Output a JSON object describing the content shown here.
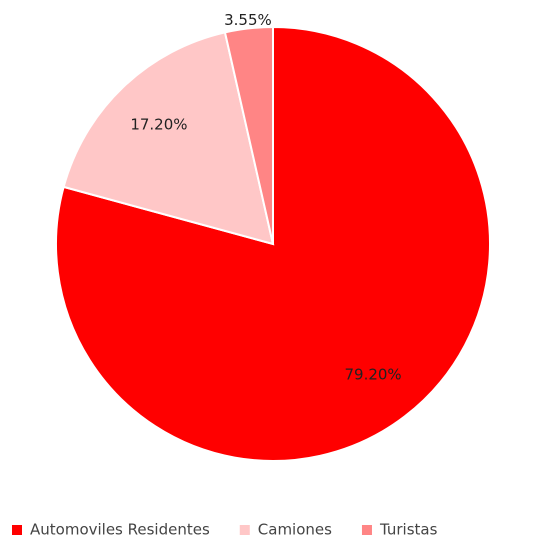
{
  "chart_data": {
    "type": "pie",
    "categories": [
      "Automoviles Residentes",
      "Camiones",
      "Turistas"
    ],
    "values": [
      79.2,
      17.2,
      3.55
    ],
    "value_labels": [
      "79.20%",
      "17.20%",
      "3.55%"
    ],
    "colors": [
      "#ff0000",
      "#ffc7c7",
      "#ff8585"
    ],
    "legend": "bottom"
  }
}
